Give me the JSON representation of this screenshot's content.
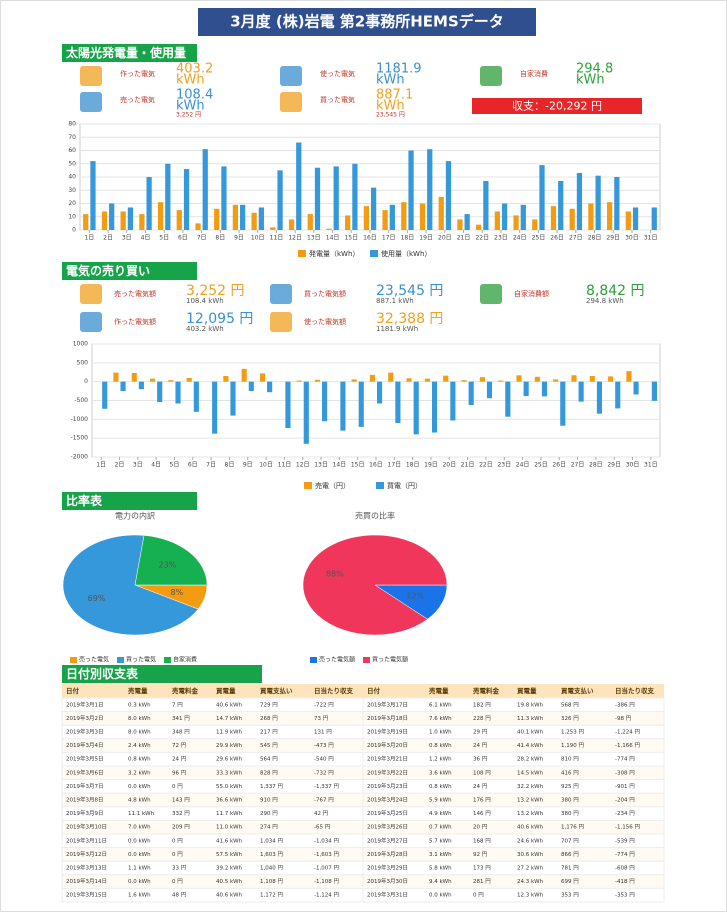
{
  "header": {
    "title": "3月度 (株)岩電 第2事務所HEMSデータ"
  },
  "sections": {
    "solar": "太陽光発電量・使用量",
    "trade": "電気の売り買い",
    "ratio": "比率表",
    "daily": "日付別収支表"
  },
  "solar_summary": [
    {
      "label": "作った電気",
      "value": "403.2",
      "unit": "kWh",
      "color": "#f0a020"
    },
    {
      "label": "使った電気",
      "value": "1181.9",
      "unit": "kWh",
      "color": "#3a8fd0"
    },
    {
      "label": "自家消費",
      "value": "294.8",
      "unit": "kWh",
      "color": "#2e9e3a"
    },
    {
      "label": "売った電気",
      "value": "108.4",
      "unit": "kWh",
      "note": "3,252 円",
      "color": "#3a8fd0"
    },
    {
      "label": "買った電気",
      "value": "887.1",
      "unit": "kWh",
      "note": "23,545 円",
      "color": "#f0a020"
    }
  ],
  "balance": "収支：-20,292 円",
  "trade_summary": [
    {
      "label": "売った電気額",
      "value": "3,252 円",
      "sub": "108.4 kWh",
      "color": "#f0a020"
    },
    {
      "label": "買った電気額",
      "value": "23,545 円",
      "sub": "887.1 kWh",
      "color": "#3a8fd0"
    },
    {
      "label": "自家消費額",
      "value": "8,842 円",
      "sub": "294.8 kWh",
      "color": "#2e9e3a"
    },
    {
      "label": "作った電気額",
      "value": "12,095 円",
      "sub": "403.2 kWh",
      "color": "#3a8fd0"
    },
    {
      "label": "使った電気額",
      "value": "32,388 円",
      "sub": "1181.9 kWh",
      "color": "#f0a020"
    }
  ],
  "chart_data": [
    {
      "type": "bar",
      "categories": [
        "1日",
        "2日",
        "3日",
        "4日",
        "5日",
        "6日",
        "7日",
        "8日",
        "9日",
        "10日",
        "11日",
        "12日",
        "13日",
        "14日",
        "15日",
        "16日",
        "17日",
        "18日",
        "19日",
        "20日",
        "21日",
        "22日",
        "23日",
        "24日",
        "25日",
        "26日",
        "27日",
        "28日",
        "29日",
        "30日",
        "31日"
      ],
      "series": [
        {
          "name": "発電量（kWh）",
          "color": "#f39c12",
          "values": [
            12,
            14,
            14,
            12,
            21,
            15,
            5,
            16,
            19,
            13,
            2,
            8,
            12,
            1,
            11,
            18,
            15,
            21,
            20,
            25,
            8,
            4,
            14,
            11,
            8,
            18,
            16,
            20,
            21,
            14,
            0
          ]
        },
        {
          "name": "使用量（kWh）",
          "color": "#3498db",
          "values": [
            52,
            20,
            17,
            40,
            50,
            46,
            61,
            48,
            19,
            17,
            45,
            66,
            47,
            48,
            50,
            32,
            19,
            60,
            61,
            52,
            12,
            37,
            20,
            19,
            49,
            37,
            43,
            41,
            40,
            17,
            17
          ]
        }
      ],
      "ylim": [
        0,
        80
      ],
      "yticks": [
        0,
        10,
        20,
        30,
        40,
        50,
        60,
        70,
        80
      ],
      "grid": true,
      "legend": "bottom"
    },
    {
      "type": "bar",
      "categories": [
        "1日",
        "2日",
        "3日",
        "4日",
        "5日",
        "6日",
        "7日",
        "8日",
        "9日",
        "10日",
        "11日",
        "12日",
        "13日",
        "14日",
        "15日",
        "16日",
        "17日",
        "18日",
        "19日",
        "20日",
        "21日",
        "22日",
        "23日",
        "24日",
        "25日",
        "26日",
        "27日",
        "28日",
        "29日",
        "30日",
        "31日"
      ],
      "series": [
        {
          "name": "売電（円）",
          "color": "#f39c12",
          "values": [
            0,
            240,
            230,
            80,
            40,
            100,
            0,
            150,
            340,
            220,
            0,
            30,
            50,
            0,
            60,
            180,
            240,
            90,
            80,
            160,
            40,
            120,
            30,
            170,
            130,
            60,
            170,
            150,
            140,
            280,
            0
          ]
        },
        {
          "name": "買電（円）",
          "color": "#3498db",
          "values": [
            -720,
            -250,
            -200,
            -540,
            -580,
            -800,
            -1380,
            -900,
            -250,
            -280,
            -1230,
            -1650,
            -1050,
            -1300,
            -1200,
            -580,
            -1100,
            -1400,
            -1350,
            -1030,
            -620,
            -440,
            -930,
            -380,
            -390,
            -1170,
            -530,
            -850,
            -710,
            -340,
            -510
          ]
        }
      ],
      "ylim": [
        -2000,
        1000
      ],
      "yticks": [
        -2000,
        -1500,
        -1000,
        -500,
        0,
        500,
        1000
      ],
      "grid": true,
      "legend": "bottom"
    },
    {
      "type": "pie",
      "title": "電力の内訳",
      "categories": [
        "売った電気",
        "買った電気",
        "自家消費"
      ],
      "values": [
        8,
        69,
        23
      ],
      "value_labels": [
        "8%",
        "69%",
        "23%"
      ],
      "colors": [
        "#f39c12",
        "#3498db",
        "#16b050"
      ]
    },
    {
      "type": "pie",
      "title": "売買の比率",
      "categories": [
        "売った電気額",
        "買った電気額"
      ],
      "values": [
        12,
        88
      ],
      "value_labels": [
        "12%",
        "88%"
      ],
      "colors": [
        "#1a73e8",
        "#f0365a"
      ]
    }
  ],
  "table": {
    "columns": [
      "日付",
      "売電量",
      "売電料金",
      "買電量",
      "買電支払い",
      "日当たり収支"
    ],
    "left": [
      [
        "2019年3月1日",
        "0.3 kWh",
        "7 円",
        "40.6 kWh",
        "729 円",
        "-722 円"
      ],
      [
        "2019年3月2日",
        "8.0 kWh",
        "341 円",
        "14.7 kWh",
        "268 円",
        "73 円"
      ],
      [
        "2019年3月3日",
        "8.0 kWh",
        "348 円",
        "11.9 kWh",
        "217 円",
        "131 円"
      ],
      [
        "2019年3月4日",
        "2.4 kWh",
        "72 円",
        "29.9 kWh",
        "545 円",
        "-473 円"
      ],
      [
        "2019年3月5日",
        "0.8 kWh",
        "24 円",
        "29.6 kWh",
        "564 円",
        "-540 円"
      ],
      [
        "2019年3月6日",
        "3.2 kWh",
        "96 円",
        "33.3 kWh",
        "828 円",
        "-732 円"
      ],
      [
        "2019年3月7日",
        "0.0 kWh",
        "0 円",
        "55.0 kWh",
        "1,337 円",
        "-1,337 円"
      ],
      [
        "2019年3月8日",
        "4.8 kWh",
        "143 円",
        "36.6 kWh",
        "910 円",
        "-767 円"
      ],
      [
        "2019年3月9日",
        "11.1 kWh",
        "332 円",
        "11.7 kWh",
        "290 円",
        "42 円"
      ],
      [
        "2019年3月10日",
        "7.0 kWh",
        "209 円",
        "11.0 kWh",
        "274 円",
        "-65 円"
      ],
      [
        "2019年3月11日",
        "0.0 kWh",
        "0 円",
        "41.6 kWh",
        "1,034 円",
        "-1,034 円"
      ],
      [
        "2019年3月12日",
        "0.0 kWh",
        "0 円",
        "57.5 kWh",
        "1,603 円",
        "-1,603 円"
      ],
      [
        "2019年3月13日",
        "1.1 kWh",
        "33 円",
        "39.2 kWh",
        "1,040 円",
        "-1,007 円"
      ],
      [
        "2019年3月14日",
        "0.0 kWh",
        "0 円",
        "40.5 kWh",
        "1,108 円",
        "-1,108 円"
      ],
      [
        "2019年3月15日",
        "1.6 kWh",
        "48 円",
        "40.6 kWh",
        "1,172 円",
        "-1,124 円"
      ]
    ],
    "right": [
      [
        "2019年3月17日",
        "6.1 kWh",
        "182 円",
        "19.8 kWh",
        "568 円",
        "-386 円"
      ],
      [
        "2019年3月18日",
        "7.6 kWh",
        "228 円",
        "11.3 kWh",
        "326 円",
        "-98 円"
      ],
      [
        "2019年3月19日",
        "1.0 kWh",
        "29 円",
        "40.1 kWh",
        "1,253 円",
        "-1,224 円"
      ],
      [
        "2019年3月20日",
        "0.8 kWh",
        "24 円",
        "41.4 kWh",
        "1,190 円",
        "-1,166 円"
      ],
      [
        "2019年3月21日",
        "1.2 kWh",
        "36 円",
        "28.2 kWh",
        "810 円",
        "-774 円"
      ],
      [
        "2019年3月22日",
        "3.6 kWh",
        "108 円",
        "14.5 kWh",
        "416 円",
        "-308 円"
      ],
      [
        "2019年3月23日",
        "0.8 kWh",
        "24 円",
        "32.2 kWh",
        "925 円",
        "-901 円"
      ],
      [
        "2019年3月24日",
        "5.9 kWh",
        "176 円",
        "13.2 kWh",
        "380 円",
        "-204 円"
      ],
      [
        "2019年3月25日",
        "4.9 kWh",
        "146 円",
        "13.2 kWh",
        "380 円",
        "-234 円"
      ],
      [
        "2019年3月26日",
        "0.7 kWh",
        "20 円",
        "40.6 kWh",
        "1,176 円",
        "-1,156 円"
      ],
      [
        "2019年3月27日",
        "5.7 kWh",
        "168 円",
        "24.6 kWh",
        "707 円",
        "-539 円"
      ],
      [
        "2019年3月28日",
        "3.1 kWh",
        "92 円",
        "30.6 kWh",
        "866 円",
        "-774 円"
      ],
      [
        "2019年3月29日",
        "5.8 kWh",
        "173 円",
        "27.2 kWh",
        "781 円",
        "-608 円"
      ],
      [
        "2019年3月30日",
        "9.4 kWh",
        "281 円",
        "24.3 kWh",
        "699 円",
        "-418 円"
      ],
      [
        "2019年3月31日",
        "0.0 kWh",
        "0 円",
        "12.3 kWh",
        "353 円",
        "-353 円"
      ]
    ]
  }
}
